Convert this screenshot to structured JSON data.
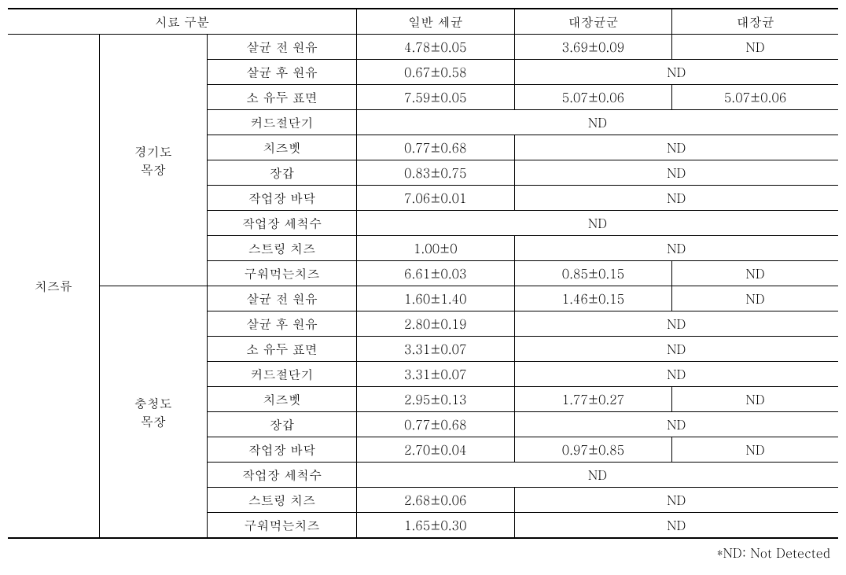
{
  "header": {
    "sample_category": "시료 구분",
    "general_bacteria": "일반 세균",
    "coliform_group": "대장균군",
    "ecoli": "대장균"
  },
  "category_main": "치즈류",
  "farms": {
    "gyeonggi": {
      "line1": "경기도",
      "line2": "목장"
    },
    "chungcheong": {
      "line1": "충청도",
      "line2": "목장"
    }
  },
  "rows": {
    "gyeonggi": [
      {
        "item": "살균 전 원유",
        "c1": "4.78±0.05",
        "c2": "3.69±0.09",
        "c3": "ND",
        "c23span": false
      },
      {
        "item": "살균 후 원유",
        "c1": "0.67±0.58",
        "c23": "ND",
        "c23span": true
      },
      {
        "item": "소 유두 표면",
        "c1": "7.59±0.05",
        "c2": "5.07±0.06",
        "c3": "5.07±0.06",
        "c23span": false
      },
      {
        "item": "커드절단기",
        "c123": "ND",
        "c123span": true
      },
      {
        "item": "치즈벳",
        "c1": "0.77±0.68",
        "c23": "ND",
        "c23span": true
      },
      {
        "item": "장갑",
        "c1": "0.83±0.75",
        "c23": "ND",
        "c23span": true
      },
      {
        "item": "작업장 바닥",
        "c1": "7.06±0.01",
        "c23": "ND",
        "c23span": true
      },
      {
        "item": "작업장 세척수",
        "c123": "ND",
        "c123span": true
      },
      {
        "item": "스트링 치즈",
        "c1": "1.00±0",
        "c23": "ND",
        "c23span": true
      },
      {
        "item": "구워먹는치즈",
        "c1": "6.61±0.03",
        "c2": "0.85±0.15",
        "c3": "ND",
        "c23span": false
      }
    ],
    "chungcheong": [
      {
        "item": "살균 전 원유",
        "c1": "1.60±1.40",
        "c2": "1.46±0.15",
        "c3": "ND",
        "c23span": false
      },
      {
        "item": "살균 후 원유",
        "c1": "2.80±0.19",
        "c23": "ND",
        "c23span": true
      },
      {
        "item": "소 유두 표면",
        "c1": "3.31±0.07",
        "c23": "ND",
        "c23span": true
      },
      {
        "item": "커드절단기",
        "c1": "3.31±0.07",
        "c23": "ND",
        "c23span": true
      },
      {
        "item": "치즈벳",
        "c1": "2.95±0.13",
        "c2": "1.77±0.27",
        "c3": "ND",
        "c23span": false
      },
      {
        "item": "장갑",
        "c1": "0.77±0.68",
        "c23": "ND",
        "c23span": true
      },
      {
        "item": "작업장 바닥",
        "c1": "2.70±0.04",
        "c2": "0.97±0.85",
        "c3": "ND",
        "c23span": false
      },
      {
        "item": "작업장 세척수",
        "c123": "ND",
        "c123span": true
      },
      {
        "item": "스트링 치즈",
        "c1": "2.68±0.06",
        "c23": "ND",
        "c23span": true
      },
      {
        "item": "구워먹는치즈",
        "c1": "1.65±0.30",
        "c23": "ND",
        "c23span": true
      }
    ]
  },
  "footnote": "*ND: Not Detected",
  "style": {
    "text_color": "#000000",
    "background_color": "#ffffff",
    "border_color": "#000000",
    "font_family": "Batang, Times New Roman, serif",
    "font_size_pt": 12
  }
}
